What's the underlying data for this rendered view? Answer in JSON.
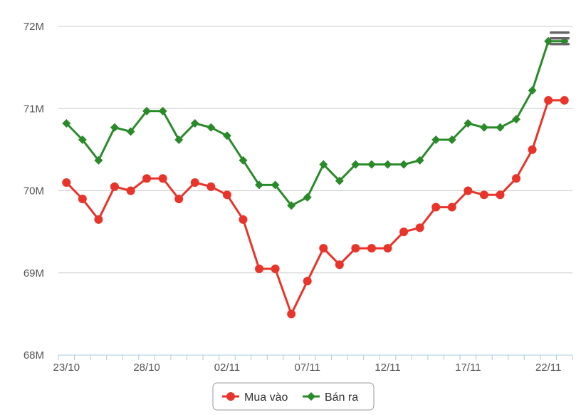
{
  "chart_data": {
    "type": "line",
    "x": [
      "23/10",
      "24/10",
      "25/10",
      "26/10",
      "27/10",
      "28/10",
      "29/10",
      "30/10",
      "31/10",
      "01/11",
      "02/11",
      "03/11",
      "04/11",
      "05/11",
      "06/11",
      "07/11",
      "08/11",
      "09/11",
      "10/11",
      "11/11",
      "12/11",
      "13/11",
      "14/11",
      "15/11",
      "16/11",
      "17/11",
      "18/11",
      "19/11",
      "20/11",
      "21/11",
      "22/11",
      "23/11"
    ],
    "x_tick_labels": [
      "23/10",
      "28/10",
      "02/11",
      "07/11",
      "12/11",
      "17/11",
      "22/11"
    ],
    "y_tick_values": [
      68,
      69,
      70,
      71,
      72
    ],
    "y_tick_labels": [
      "68M",
      "69M",
      "70M",
      "71M",
      "72M"
    ],
    "ylim": [
      68,
      72
    ],
    "grid": true,
    "legend_position": "bottom-center",
    "title": "",
    "xlabel": "",
    "ylabel": "",
    "series": [
      {
        "name": "Mua vào",
        "color": "#e8342a",
        "marker": "circle",
        "values": [
          70.1,
          69.9,
          69.65,
          70.05,
          70.0,
          70.15,
          70.15,
          69.9,
          70.1,
          70.05,
          69.95,
          69.65,
          69.05,
          69.05,
          68.5,
          68.9,
          69.3,
          69.1,
          69.3,
          69.3,
          69.3,
          69.5,
          69.55,
          69.8,
          69.8,
          70.0,
          69.95,
          69.95,
          70.15,
          70.5,
          71.1,
          71.1
        ]
      },
      {
        "name": "Bán ra",
        "color": "#2a8a2a",
        "marker": "diamond",
        "values": [
          70.82,
          70.62,
          70.37,
          70.77,
          70.72,
          70.97,
          70.97,
          70.62,
          70.82,
          70.77,
          70.67,
          70.37,
          70.07,
          70.07,
          69.82,
          69.92,
          70.32,
          70.12,
          70.32,
          70.32,
          70.32,
          70.32,
          70.37,
          70.62,
          70.62,
          70.82,
          70.77,
          70.77,
          70.87,
          71.22,
          71.82,
          71.82
        ]
      }
    ]
  },
  "menu": {
    "icon": "hamburger-menu-icon",
    "color": "#666666"
  }
}
